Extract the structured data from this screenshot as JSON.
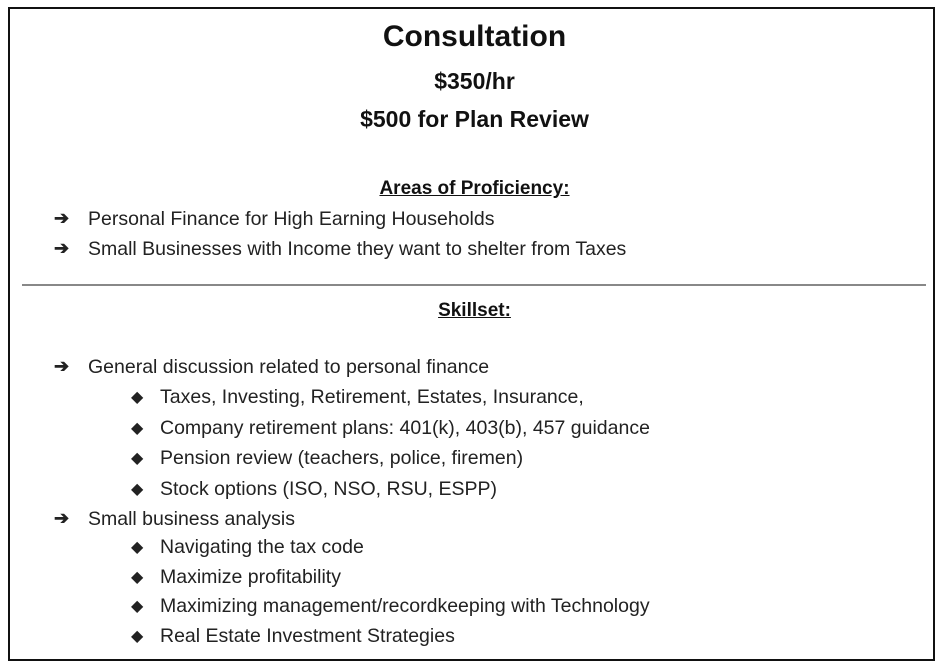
{
  "title": "Consultation",
  "price_hourly": "$350/hr",
  "price_plan_review": "$500 for Plan Review",
  "proficiency": {
    "heading": "Areas of Proficiency:",
    "items": [
      "Personal Finance for High Earning Households",
      "Small Businesses with Income they want to shelter from Taxes"
    ]
  },
  "skillset": {
    "heading": "Skillset:",
    "groups": [
      {
        "label": "General discussion related to personal finance",
        "items": [
          "Taxes, Investing, Retirement, Estates, Insurance,",
          "Company retirement plans: 401(k), 403(b), 457 guidance",
          "Pension review (teachers, police, firemen)",
          "Stock options (ISO, NSO, RSU, ESPP)"
        ]
      },
      {
        "label": "Small business analysis",
        "items": [
          "Navigating the tax code",
          "Maximize profitability",
          "Maximizing management/recordkeeping with Technology",
          "Real Estate Investment Strategies"
        ]
      }
    ]
  },
  "icons": {
    "level1_bullet": "➔",
    "level2_bullet": "◆"
  }
}
